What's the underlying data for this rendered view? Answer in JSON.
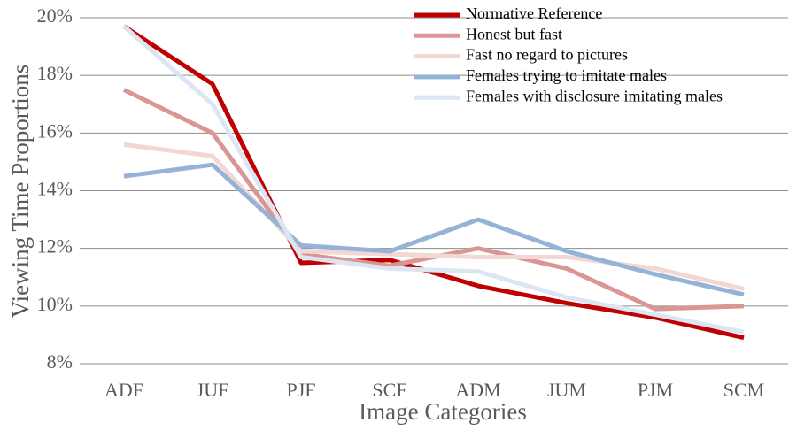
{
  "chart_data": {
    "type": "line",
    "x_label": "Image Categories",
    "y_label": "Viewing Time Proportions",
    "categories": [
      "ADF",
      "JUF",
      "PJF",
      "SCF",
      "ADM",
      "JUM",
      "PJM",
      "SCM"
    ],
    "series": [
      {
        "name": "Normative Reference",
        "color": "#c00000",
        "values": [
          19.7,
          17.7,
          11.5,
          11.6,
          10.7,
          10.1,
          9.6,
          8.9
        ]
      },
      {
        "name": "Honest but fast",
        "color": "#d99694",
        "values": [
          17.5,
          16.0,
          11.8,
          11.4,
          12.0,
          11.3,
          9.9,
          10.0
        ]
      },
      {
        "name": "Fast no regard to pictures",
        "color": "#f2d7d5",
        "values": [
          15.6,
          15.2,
          11.9,
          11.8,
          11.7,
          11.7,
          11.3,
          10.6
        ]
      },
      {
        "name": "Females trying to imitate males",
        "color": "#95b3d7",
        "values": [
          14.5,
          14.9,
          12.1,
          11.9,
          13.0,
          11.9,
          11.1,
          10.4
        ]
      },
      {
        "name": "Females with disclosure imitating males",
        "color": "#dce6f2",
        "values": [
          19.7,
          17.0,
          11.7,
          11.3,
          11.2,
          10.3,
          9.7,
          9.1
        ]
      }
    ],
    "ylim": [
      8,
      20
    ],
    "yticks": [
      {
        "value": 8,
        "label": "8%"
      },
      {
        "value": 10,
        "label": "10%"
      },
      {
        "value": 12,
        "label": "12%"
      },
      {
        "value": 14,
        "label": "14%"
      },
      {
        "value": 16,
        "label": "16%"
      },
      {
        "value": 18,
        "label": "18%"
      },
      {
        "value": 20,
        "label": "20%"
      }
    ],
    "grid": true,
    "legend": "upper-right"
  }
}
